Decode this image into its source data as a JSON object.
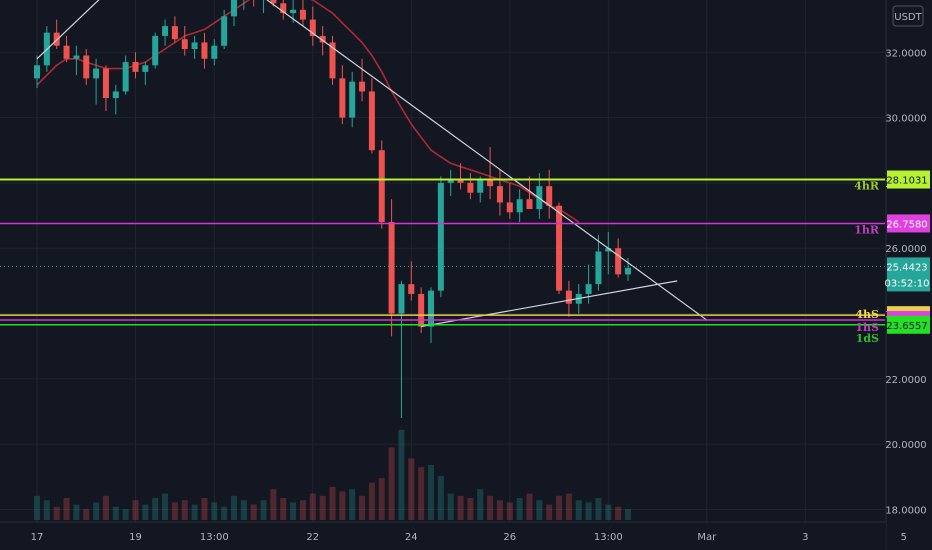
{
  "chart_data": {
    "type": "candlestick",
    "currency": "USDT",
    "y_ticks": [
      "18.0000",
      "20.0000",
      "22.0000",
      "24.0000",
      "26.0000",
      "28.0000",
      "30.0000",
      "32.0000"
    ],
    "y_tick_values": [
      18,
      20,
      22,
      24,
      26,
      28,
      30,
      32
    ],
    "ylim": [
      17.8,
      33.6
    ],
    "x_ticks": [
      "17",
      "19",
      "13:00",
      "22",
      "24",
      "26",
      "13:00",
      "Mar",
      "3",
      "5"
    ],
    "x_tick_index": [
      0,
      10,
      18,
      28,
      38,
      48,
      58,
      68,
      78,
      88
    ],
    "grid": true,
    "candles": [
      [
        31.2,
        31.9,
        30.9,
        31.6
      ],
      [
        31.6,
        32.8,
        31.4,
        32.6
      ],
      [
        32.6,
        33.0,
        32.1,
        32.2
      ],
      [
        32.2,
        32.5,
        31.7,
        31.8
      ],
      [
        31.8,
        32.2,
        31.3,
        31.9
      ],
      [
        31.9,
        32.1,
        31.0,
        31.2
      ],
      [
        31.2,
        31.8,
        30.4,
        31.5
      ],
      [
        31.5,
        31.6,
        30.2,
        30.6
      ],
      [
        30.6,
        31.0,
        30.1,
        30.8
      ],
      [
        30.8,
        31.9,
        30.7,
        31.7
      ],
      [
        31.7,
        32.0,
        31.2,
        31.4
      ],
      [
        31.4,
        31.7,
        31.0,
        31.6
      ],
      [
        31.6,
        32.6,
        31.5,
        32.5
      ],
      [
        32.5,
        33.0,
        32.2,
        32.8
      ],
      [
        32.8,
        33.1,
        32.3,
        32.4
      ],
      [
        32.4,
        32.8,
        31.9,
        32.1
      ],
      [
        32.1,
        32.5,
        31.8,
        32.3
      ],
      [
        32.3,
        32.6,
        31.5,
        31.8
      ],
      [
        31.8,
        32.4,
        31.6,
        32.2
      ],
      [
        32.2,
        33.3,
        32.1,
        33.1
      ],
      [
        33.1,
        33.8,
        32.8,
        33.6
      ],
      [
        33.6,
        34.0,
        33.3,
        33.7
      ],
      [
        33.7,
        34.0,
        33.4,
        33.6
      ],
      [
        33.6,
        33.9,
        33.2,
        33.8
      ],
      [
        33.8,
        34.1,
        33.4,
        33.5
      ],
      [
        33.5,
        33.9,
        33.0,
        33.2
      ],
      [
        33.2,
        33.6,
        32.9,
        33.3
      ],
      [
        33.3,
        33.7,
        32.8,
        33.0
      ],
      [
        33.0,
        33.4,
        32.2,
        32.5
      ],
      [
        32.5,
        32.8,
        31.9,
        32.3
      ],
      [
        32.3,
        32.5,
        31.0,
        31.2
      ],
      [
        31.2,
        31.6,
        29.8,
        30.0
      ],
      [
        30.0,
        31.4,
        29.7,
        31.1
      ],
      [
        31.1,
        31.8,
        30.5,
        30.8
      ],
      [
        30.8,
        31.2,
        28.9,
        29.0
      ],
      [
        29.0,
        29.3,
        26.6,
        26.8
      ],
      [
        26.8,
        27.5,
        23.3,
        24.0
      ],
      [
        24.0,
        25.0,
        20.8,
        24.9
      ],
      [
        24.9,
        25.6,
        24.4,
        24.6
      ],
      [
        24.6,
        24.8,
        23.4,
        23.6
      ],
      [
        23.6,
        24.8,
        23.1,
        24.7
      ],
      [
        24.7,
        28.2,
        24.5,
        28.0
      ],
      [
        28.0,
        28.4,
        27.6,
        28.1
      ],
      [
        28.1,
        28.6,
        27.8,
        28.0
      ],
      [
        28.0,
        28.3,
        27.5,
        27.7
      ],
      [
        27.7,
        28.2,
        27.4,
        28.1
      ],
      [
        28.1,
        29.1,
        27.5,
        27.9
      ],
      [
        27.9,
        28.4,
        27.0,
        27.4
      ],
      [
        27.4,
        28.0,
        26.9,
        27.1
      ],
      [
        27.1,
        27.8,
        26.8,
        27.5
      ],
      [
        27.5,
        28.2,
        27.2,
        27.2
      ],
      [
        27.2,
        28.3,
        26.9,
        27.9
      ],
      [
        27.9,
        28.4,
        26.9,
        27.3
      ],
      [
        27.3,
        27.4,
        24.6,
        24.7
      ],
      [
        24.7,
        25.0,
        23.9,
        24.3
      ],
      [
        24.3,
        24.9,
        24.0,
        24.6
      ],
      [
        24.6,
        25.5,
        24.3,
        24.9
      ],
      [
        24.9,
        26.4,
        24.7,
        25.9
      ],
      [
        25.9,
        26.5,
        25.2,
        26.0
      ],
      [
        26.0,
        26.3,
        25.1,
        25.2
      ],
      [
        25.2,
        25.7,
        25.0,
        25.4
      ]
    ],
    "volumes": [
      0.22,
      0.18,
      0.12,
      0.2,
      0.14,
      0.1,
      0.16,
      0.22,
      0.12,
      0.1,
      0.18,
      0.14,
      0.2,
      0.24,
      0.16,
      0.18,
      0.14,
      0.2,
      0.16,
      0.12,
      0.22,
      0.18,
      0.14,
      0.18,
      0.28,
      0.2,
      0.16,
      0.18,
      0.24,
      0.22,
      0.3,
      0.26,
      0.28,
      0.22,
      0.34,
      0.38,
      0.66,
      0.82,
      0.56,
      0.48,
      0.5,
      0.4,
      0.24,
      0.22,
      0.2,
      0.28,
      0.22,
      0.18,
      0.16,
      0.2,
      0.24,
      0.18,
      0.14,
      0.22,
      0.24,
      0.18,
      0.16,
      0.2,
      0.14,
      0.12,
      0.1
    ],
    "moving_average": [
      31.0,
      31.3,
      31.6,
      31.8,
      31.8,
      31.7,
      31.6,
      31.5,
      31.5,
      31.5,
      31.6,
      31.7,
      31.9,
      32.1,
      32.3,
      32.5,
      32.6,
      32.7,
      32.9,
      33.1,
      33.3,
      33.5,
      33.7,
      33.8,
      33.9,
      33.9,
      33.8,
      33.7,
      33.6,
      33.4,
      33.2,
      32.9,
      32.6,
      32.3,
      31.9,
      31.4,
      30.8,
      30.3,
      29.8,
      29.4,
      29.0,
      28.8,
      28.6,
      28.5,
      28.4,
      28.3,
      28.2,
      28.1,
      28.0,
      27.9,
      27.7,
      27.5,
      27.3,
      27.2,
      27.0,
      26.8
    ],
    "trendlines": [
      {
        "from": [
          0,
          31.8
        ],
        "to": [
          8,
          34.1
        ],
        "color": "#d1d4dc"
      },
      {
        "from": [
          22,
          33.9
        ],
        "to": [
          68,
          23.8
        ],
        "color": "#d1d4dc"
      },
      {
        "from": [
          39,
          23.6
        ],
        "to": [
          65,
          25.0
        ],
        "color": "#d1d4dc"
      }
    ],
    "levels": [
      {
        "name": "4hR",
        "value": 28.1031,
        "label": "28.1031",
        "color": "#b5f22f",
        "tag_bg": "#b5f22f",
        "tag_fg": "#131722",
        "name_color": "#9fc92a",
        "width": 2
      },
      {
        "name": "1hR",
        "value": 26.758,
        "label": "26.7580",
        "color": "#d634d6",
        "tag_bg": "#e040e0",
        "tag_fg": "#ffffff",
        "name_color": "#c040c0",
        "width": 1.5
      },
      {
        "name": "4hS",
        "value": 23.95,
        "label": "",
        "color": "#e5d24a",
        "tag_bg": "#e5d24a",
        "tag_fg": "#131722",
        "name_color": "#f0d94a",
        "width": 1.5
      },
      {
        "name": "1hS",
        "value": 23.8,
        "label": "",
        "color": "#d634d6",
        "tag_bg": "#e040e0",
        "tag_fg": "#ffffff",
        "name_color": "#c040c0",
        "width": 1.5
      },
      {
        "name": "1dS",
        "value": 23.6557,
        "label": "23.6557",
        "color": "#22e022",
        "tag_bg": "#22e022",
        "tag_fg": "#131722",
        "name_color": "#2bc02b",
        "width": 1.5
      }
    ],
    "last_price": {
      "label": "25.4423",
      "value": 25.4423,
      "color": "#26a69a"
    },
    "countdown": "03:52:10"
  }
}
